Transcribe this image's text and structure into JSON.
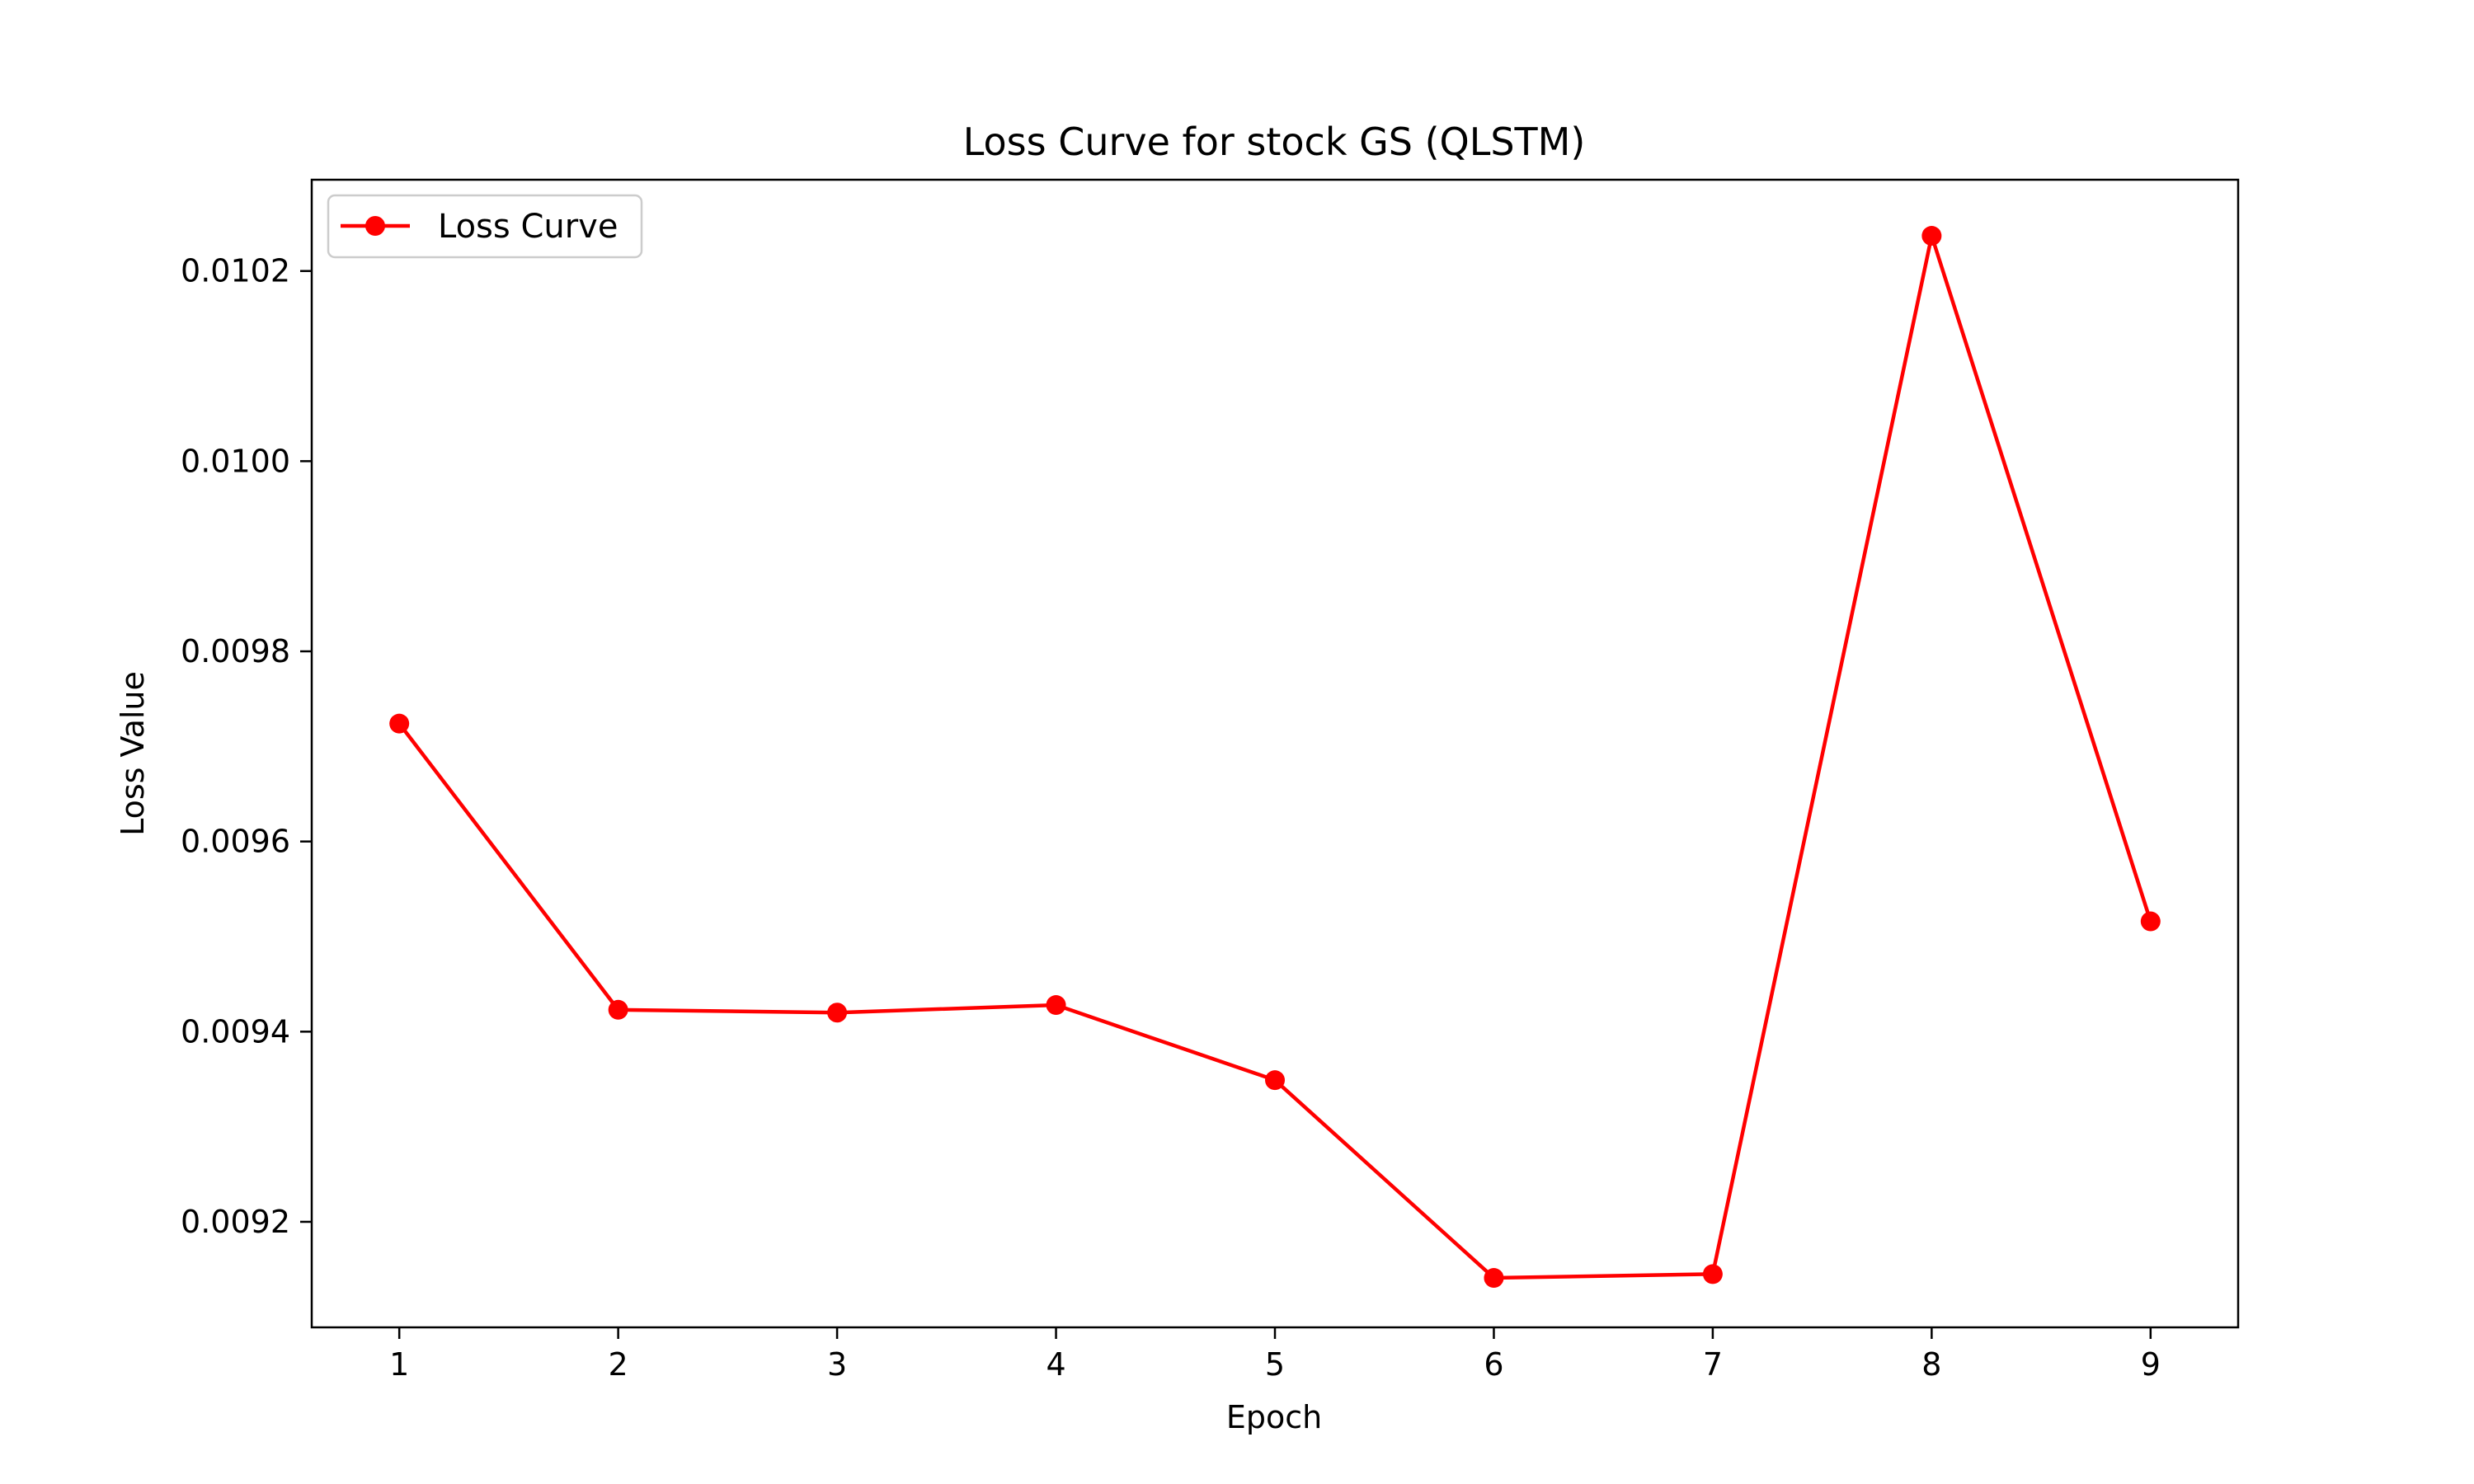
{
  "chart_data": {
    "type": "line",
    "title": "Loss Curve for stock GS (QLSTM)",
    "xlabel": "Epoch",
    "ylabel": "Loss Value",
    "x": [
      1,
      2,
      3,
      4,
      5,
      6,
      7,
      8,
      9
    ],
    "x_ticks": [
      "1",
      "2",
      "3",
      "4",
      "5",
      "6",
      "7",
      "8",
      "9"
    ],
    "y_ticks": [
      "0.0092",
      "0.0094",
      "0.0096",
      "0.0098",
      "0.0100",
      "0.0102"
    ],
    "y_tick_values": [
      0.0092,
      0.0094,
      0.0096,
      0.0098,
      0.01,
      0.0102
    ],
    "xlim": [
      0.6,
      9.4
    ],
    "ylim": [
      0.009089,
      0.010296
    ],
    "grid": false,
    "legend_position": "top-left",
    "series": [
      {
        "name": "Loss Curve",
        "color": "#ff0000",
        "marker": "circle",
        "values": [
          0.009724,
          0.009423,
          0.00942,
          0.009428,
          0.009349,
          0.009141,
          0.009145,
          0.010237,
          0.009516
        ]
      }
    ]
  }
}
